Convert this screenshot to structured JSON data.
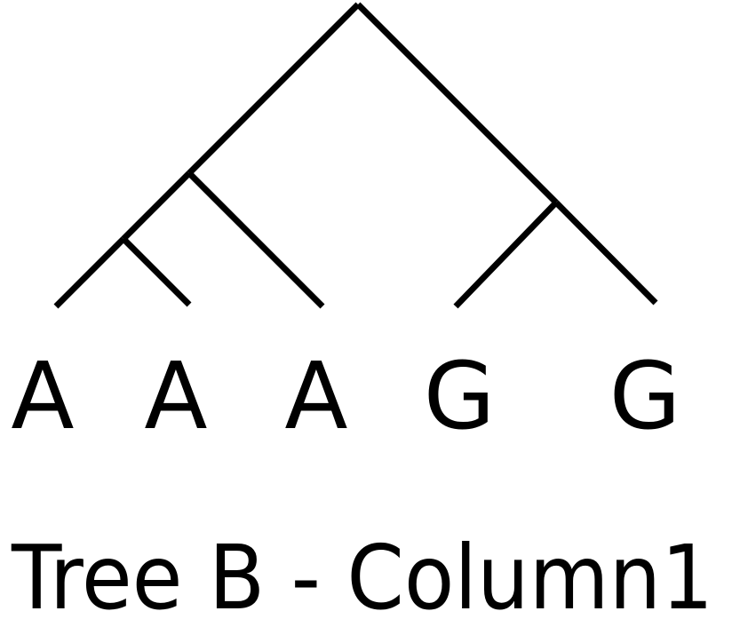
{
  "tree": {
    "leaves": [
      {
        "id": "leaf-1",
        "label": "A"
      },
      {
        "id": "leaf-2",
        "label": "A"
      },
      {
        "id": "leaf-3",
        "label": "A"
      },
      {
        "id": "leaf-4",
        "label": "G"
      },
      {
        "id": "leaf-5",
        "label": "G"
      }
    ],
    "caption": "Tree B - Column1",
    "line_color": "#000000"
  }
}
